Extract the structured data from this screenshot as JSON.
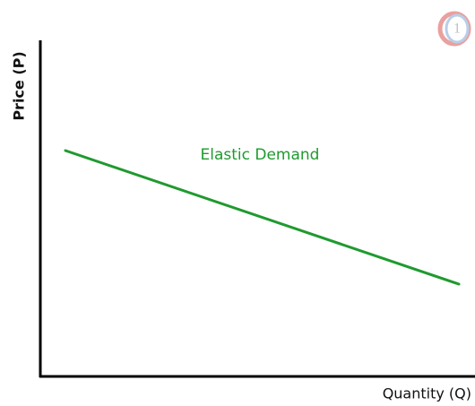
{
  "chart_data": {
    "type": "line",
    "x_label": "Quantity (Q)",
    "y_label": "Price (P)",
    "annotation": "Elastic Demand",
    "color": "#1f9a2e"
  }
}
